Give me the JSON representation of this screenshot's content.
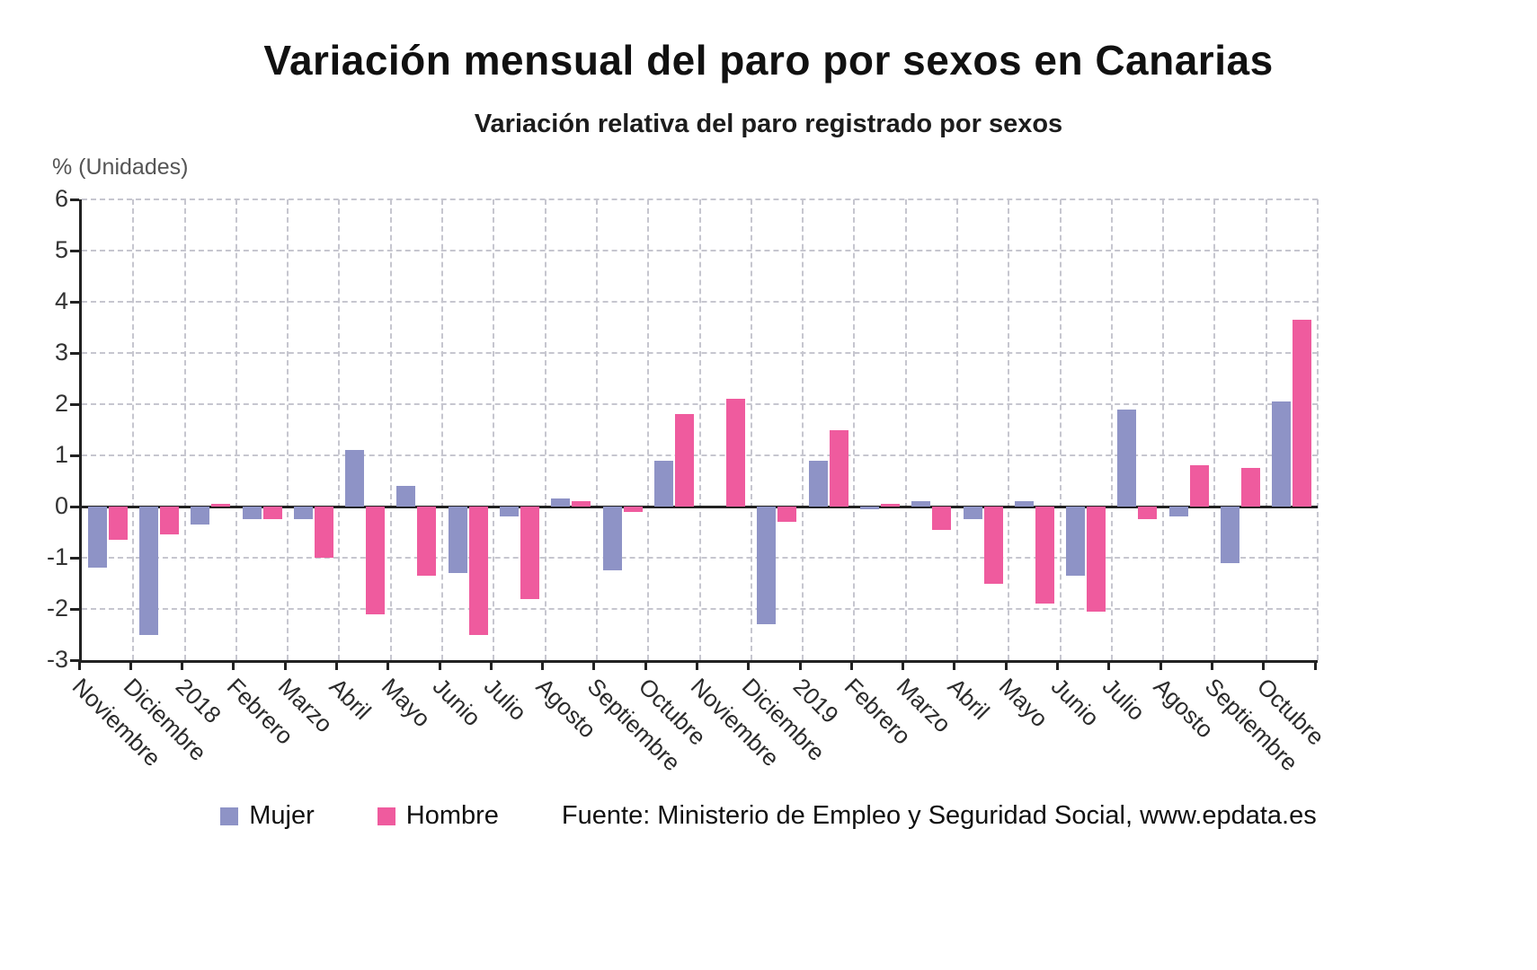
{
  "chart_data": {
    "type": "bar",
    "title": "Variación mensual del paro por sexos en Canarias",
    "subtitle": "Variación relativa del paro registrado por sexos",
    "ylabel": "% (Unidades)",
    "xlabel": "",
    "ylim": [
      -3,
      6
    ],
    "yticks": [
      6,
      5,
      4,
      3,
      2,
      1,
      0,
      -1,
      -2,
      -3
    ],
    "grid": true,
    "legend_position": "bottom",
    "categories": [
      "Noviembre",
      "Diciembre",
      "2018",
      "Febrero",
      "Marzo",
      "Abril",
      "Mayo",
      "Junio",
      "Julio",
      "Agosto",
      "Septiembre",
      "Octubre",
      "Noviembre",
      "Diciembre",
      "2019",
      "Febrero",
      "Marzo",
      "Abril",
      "Mayo",
      "Junio",
      "Julio",
      "Agosto",
      "Septiembre",
      "Octubre"
    ],
    "series": [
      {
        "name": "Mujer",
        "color": "#8e93c6",
        "values": [
          -1.2,
          -2.5,
          -0.35,
          -0.25,
          -0.25,
          1.1,
          0.4,
          -1.3,
          -0.2,
          0.15,
          -1.25,
          0.9,
          0,
          -2.3,
          0.9,
          -0.05,
          0.1,
          -0.25,
          0.1,
          -1.35,
          1.9,
          -0.2,
          -1.1,
          2.05
        ]
      },
      {
        "name": "Hombre",
        "color": "#ef5b9e",
        "values": [
          -0.65,
          -0.55,
          0.05,
          -0.25,
          -1.0,
          -2.1,
          -1.35,
          -2.5,
          -1.8,
          0.1,
          -0.1,
          1.8,
          2.1,
          -0.3,
          1.5,
          0.05,
          -0.45,
          -1.5,
          -1.9,
          -2.05,
          -0.25,
          0.8,
          0.75,
          3.65
        ]
      }
    ]
  },
  "source": "Fuente: Ministerio de Empleo y Seguridad Social, www.epdata.es"
}
